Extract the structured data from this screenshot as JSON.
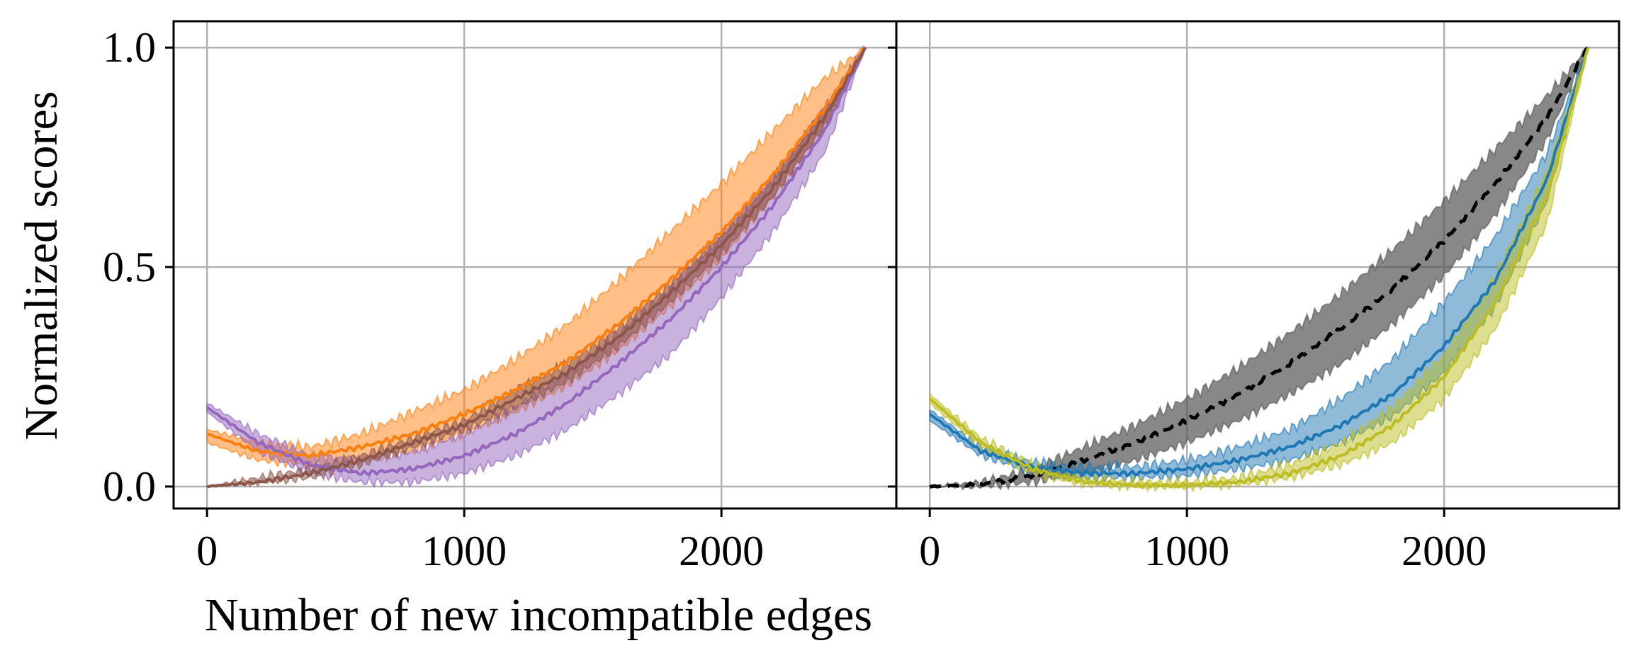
{
  "figure": {
    "xlabel": "Number of new incompatible edges",
    "ylabel": "Normalized scores"
  },
  "chart_data": [
    {
      "type": "line",
      "panel": "left",
      "xlim": [
        -130,
        2680
      ],
      "ylim": [
        -0.05,
        1.06
      ],
      "xticks": [
        0,
        1000,
        2000
      ],
      "yticks": [
        0.0,
        0.5,
        1.0
      ],
      "xtick_labels": [
        "0",
        "1000",
        "2000"
      ],
      "ytick_labels": [
        "0.0",
        "0.5",
        "1.0"
      ],
      "grid": true,
      "x_end": 2560,
      "series": [
        {
          "color": "#ff7f0e",
          "style": "solid",
          "x": [
            0,
            200,
            400,
            600,
            800,
            1000,
            1200,
            1400,
            1600,
            1800,
            2000,
            2200,
            2400,
            2560
          ],
          "mean": [
            0.12,
            0.08,
            0.07,
            0.09,
            0.12,
            0.165,
            0.22,
            0.285,
            0.37,
            0.47,
            0.58,
            0.71,
            0.86,
            1.0
          ],
          "band_lower": [
            0.1,
            0.06,
            0.05,
            0.06,
            0.08,
            0.12,
            0.17,
            0.23,
            0.31,
            0.41,
            0.52,
            0.66,
            0.82,
            1.0
          ],
          "band_upper": [
            0.13,
            0.1,
            0.09,
            0.12,
            0.17,
            0.22,
            0.29,
            0.37,
            0.47,
            0.58,
            0.69,
            0.81,
            0.93,
            1.0
          ]
        },
        {
          "color": "#9467bd",
          "style": "solid",
          "x": [
            0,
            200,
            400,
            600,
            800,
            1000,
            1200,
            1400,
            1600,
            1800,
            2000,
            2200,
            2400,
            2560
          ],
          "mean": [
            0.18,
            0.1,
            0.05,
            0.03,
            0.04,
            0.07,
            0.12,
            0.19,
            0.28,
            0.38,
            0.5,
            0.64,
            0.81,
            1.0
          ],
          "band_lower": [
            0.17,
            0.08,
            0.03,
            0.01,
            0.01,
            0.03,
            0.07,
            0.13,
            0.21,
            0.3,
            0.43,
            0.58,
            0.76,
            1.0
          ],
          "band_upper": [
            0.19,
            0.12,
            0.07,
            0.06,
            0.08,
            0.12,
            0.18,
            0.26,
            0.35,
            0.45,
            0.57,
            0.7,
            0.86,
            1.0
          ]
        },
        {
          "color": "#8c564b",
          "style": "solid",
          "x": [
            0,
            200,
            400,
            600,
            800,
            1000,
            1200,
            1400,
            1600,
            1800,
            2000,
            2200,
            2400,
            2560
          ],
          "mean": [
            0.0,
            0.01,
            0.03,
            0.06,
            0.1,
            0.14,
            0.2,
            0.26,
            0.34,
            0.44,
            0.55,
            0.68,
            0.84,
            1.0
          ],
          "band_lower": [
            0.0,
            0.01,
            0.02,
            0.05,
            0.09,
            0.13,
            0.18,
            0.24,
            0.32,
            0.42,
            0.53,
            0.66,
            0.82,
            1.0
          ],
          "band_upper": [
            0.0,
            0.02,
            0.04,
            0.07,
            0.11,
            0.15,
            0.22,
            0.28,
            0.36,
            0.46,
            0.57,
            0.7,
            0.86,
            1.0
          ]
        }
      ]
    },
    {
      "type": "line",
      "panel": "right",
      "xlim": [
        -130,
        2680
      ],
      "ylim": [
        -0.05,
        1.06
      ],
      "xticks": [
        0,
        1000,
        2000
      ],
      "xtick_labels": [
        "0",
        "1000",
        "2000"
      ],
      "grid": true,
      "x_end": 2560,
      "series": [
        {
          "color": "#555555",
          "line_color": "#000000",
          "style": "dashed",
          "x": [
            0,
            200,
            400,
            600,
            800,
            1000,
            1200,
            1400,
            1600,
            1800,
            2000,
            2200,
            2400,
            2560
          ],
          "mean": [
            0.0,
            0.005,
            0.025,
            0.06,
            0.1,
            0.15,
            0.21,
            0.28,
            0.36,
            0.45,
            0.56,
            0.69,
            0.84,
            1.0
          ],
          "band_lower": [
            0.0,
            0.0,
            0.01,
            0.03,
            0.06,
            0.1,
            0.15,
            0.21,
            0.28,
            0.37,
            0.48,
            0.62,
            0.79,
            1.0
          ],
          "band_upper": [
            0.0,
            0.01,
            0.04,
            0.09,
            0.14,
            0.2,
            0.27,
            0.35,
            0.44,
            0.54,
            0.65,
            0.77,
            0.89,
            1.0
          ]
        },
        {
          "color": "#1f77b4",
          "style": "solid",
          "x": [
            0,
            200,
            400,
            600,
            800,
            1000,
            1200,
            1400,
            1600,
            1800,
            2000,
            2200,
            2400,
            2560
          ],
          "mean": [
            0.165,
            0.08,
            0.045,
            0.03,
            0.03,
            0.04,
            0.06,
            0.09,
            0.14,
            0.21,
            0.32,
            0.47,
            0.7,
            1.0
          ],
          "band_lower": [
            0.15,
            0.07,
            0.035,
            0.02,
            0.02,
            0.025,
            0.04,
            0.06,
            0.1,
            0.16,
            0.26,
            0.41,
            0.65,
            1.0
          ],
          "band_upper": [
            0.175,
            0.09,
            0.055,
            0.045,
            0.045,
            0.06,
            0.09,
            0.13,
            0.2,
            0.29,
            0.42,
            0.57,
            0.76,
            1.0
          ]
        },
        {
          "color": "#bcbd22",
          "style": "solid",
          "x": [
            0,
            200,
            400,
            600,
            800,
            1000,
            1200,
            1400,
            1600,
            1800,
            2000,
            2200,
            2400,
            2560
          ],
          "mean": [
            0.2,
            0.1,
            0.04,
            0.01,
            0.003,
            0.003,
            0.01,
            0.03,
            0.07,
            0.14,
            0.25,
            0.42,
            0.66,
            1.0
          ],
          "band_lower": [
            0.19,
            0.09,
            0.03,
            0.005,
            0.0,
            0.0,
            0.005,
            0.02,
            0.05,
            0.1,
            0.2,
            0.36,
            0.6,
            1.0
          ],
          "band_upper": [
            0.21,
            0.11,
            0.05,
            0.02,
            0.01,
            0.01,
            0.02,
            0.05,
            0.1,
            0.18,
            0.3,
            0.48,
            0.72,
            1.0
          ]
        }
      ]
    }
  ]
}
